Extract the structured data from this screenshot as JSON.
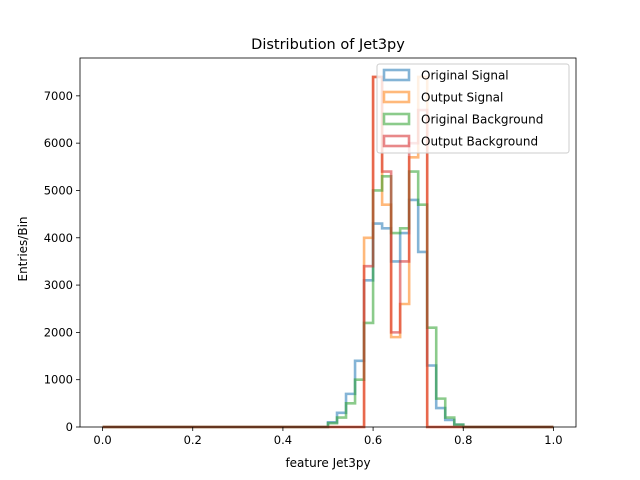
{
  "chart_data": {
    "type": "histogram-step",
    "title": "Distribution of Jet3py",
    "xlabel": "feature Jet3py",
    "ylabel": "Entries/Bin",
    "xlim": [
      -0.05,
      1.05
    ],
    "ylim": [
      0,
      7800
    ],
    "xticks": [
      0.0,
      0.2,
      0.4,
      0.6,
      0.8,
      1.0
    ],
    "xtick_labels": [
      "0.0",
      "0.2",
      "0.4",
      "0.6",
      "0.8",
      "1.0"
    ],
    "yticks": [
      0,
      1000,
      2000,
      3000,
      4000,
      5000,
      6000,
      7000
    ],
    "ytick_labels": [
      "0",
      "1000",
      "2000",
      "3000",
      "4000",
      "5000",
      "6000",
      "7000"
    ],
    "grid": false,
    "legend_position": "upper-right",
    "bin_edges": [
      0.5,
      0.52,
      0.54,
      0.56,
      0.58,
      0.6,
      0.62,
      0.64,
      0.66,
      0.68,
      0.7,
      0.72,
      0.74,
      0.76,
      0.78,
      0.8
    ],
    "range_start": 0.0,
    "range_end": 1.0,
    "series": [
      {
        "name": "Original Signal",
        "color": "#1f77b4",
        "values": [
          100,
          300,
          700,
          1400,
          3100,
          4300,
          4200,
          3500,
          4100,
          4800,
          3700,
          1300,
          400,
          150,
          50
        ]
      },
      {
        "name": "Output Signal",
        "color": "#ff7f0e",
        "values": [
          0,
          0,
          0,
          0,
          4000,
          7400,
          4700,
          1900,
          2600,
          5700,
          7400,
          0,
          0,
          0,
          0
        ]
      },
      {
        "name": "Original Background",
        "color": "#2ca02c",
        "values": [
          80,
          200,
          500,
          1000,
          2200,
          5000,
          5300,
          4100,
          4200,
          5400,
          4700,
          2100,
          600,
          200,
          50
        ]
      },
      {
        "name": "Output Background",
        "color": "#d62728",
        "values": [
          0,
          0,
          0,
          0,
          3400,
          7400,
          5400,
          2000,
          3500,
          6000,
          6700,
          0,
          0,
          0,
          0
        ]
      }
    ]
  }
}
